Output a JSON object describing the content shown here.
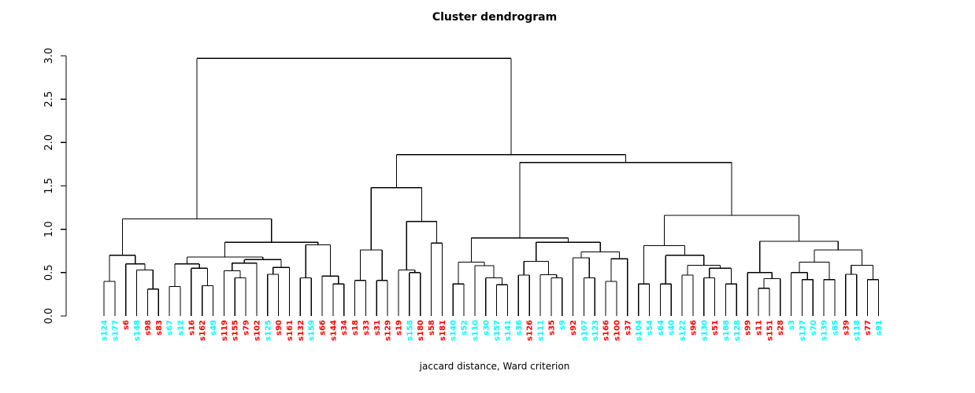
{
  "title": "Cluster dendrogram",
  "xlabel": "jaccard distance, Ward criterion",
  "colors": {
    "red": "#ff0000",
    "cyan": "#00ffff",
    "line": "#000000"
  },
  "axis": {
    "ticks": [
      0.0,
      0.5,
      1.0,
      1.5,
      2.0,
      2.5,
      3.0
    ],
    "labels": [
      "0.0",
      "0.5",
      "1.0",
      "1.5",
      "2.0",
      "2.5",
      "3.0"
    ]
  },
  "chart_data": {
    "type": "dendrogram",
    "title": "Cluster dendrogram",
    "xlabel": "jaccard distance, Ward criterion",
    "ylim": [
      0,
      3
    ],
    "grid": false,
    "leaf_order": [
      "s124",
      "s177",
      "s6",
      "s148",
      "s98",
      "s83",
      "s67",
      "s12",
      "s16",
      "s162",
      "s49",
      "s119",
      "s155",
      "s79",
      "s102",
      "s125",
      "s90",
      "s161",
      "s132",
      "s159",
      "s66",
      "s144",
      "s34",
      "s18",
      "s33",
      "s31",
      "s129",
      "s19",
      "s158",
      "s180",
      "s58",
      "s181",
      "s140",
      "s52",
      "s110",
      "s30",
      "s157",
      "s141",
      "s36",
      "s126",
      "s111",
      "s35",
      "s9",
      "s92",
      "s107",
      "s123",
      "s166",
      "s100",
      "s37",
      "s104",
      "s54",
      "s64",
      "s40",
      "s122",
      "s96",
      "s130",
      "s51",
      "s188",
      "s128",
      "s99",
      "s11",
      "s151",
      "s28",
      "s3",
      "s137",
      "s70",
      "s139",
      "s85",
      "s39",
      "s118",
      "s77",
      "s91"
    ],
    "leaf_colors": {
      "s124": "cyan",
      "s177": "cyan",
      "s6": "red",
      "s148": "cyan",
      "s98": "red",
      "s83": "red",
      "s67": "cyan",
      "s12": "cyan",
      "s16": "red",
      "s162": "red",
      "s49": "cyan",
      "s119": "red",
      "s155": "red",
      "s79": "red",
      "s102": "red",
      "s125": "cyan",
      "s90": "red",
      "s161": "red",
      "s132": "red",
      "s159": "cyan",
      "s66": "red",
      "s144": "red",
      "s34": "red",
      "s18": "red",
      "s33": "red",
      "s31": "red",
      "s129": "red",
      "s19": "red",
      "s158": "cyan",
      "s180": "red",
      "s58": "red",
      "s181": "red",
      "s140": "cyan",
      "s52": "cyan",
      "s110": "cyan",
      "s30": "cyan",
      "s157": "cyan",
      "s141": "cyan",
      "s36": "cyan",
      "s126": "red",
      "s111": "cyan",
      "s35": "red",
      "s9": "cyan",
      "s92": "red",
      "s107": "cyan",
      "s123": "cyan",
      "s166": "red",
      "s100": "red",
      "s37": "red",
      "s104": "cyan",
      "s54": "cyan",
      "s64": "cyan",
      "s40": "cyan",
      "s122": "cyan",
      "s96": "red",
      "s130": "cyan",
      "s51": "red",
      "s188": "cyan",
      "s128": "cyan",
      "s99": "red",
      "s11": "red",
      "s151": "red",
      "s28": "red",
      "s3": "cyan",
      "s137": "cyan",
      "s70": "cyan",
      "s139": "cyan",
      "s85": "cyan",
      "s39": "red",
      "s118": "cyan",
      "s77": "red",
      "s91": "cyan"
    },
    "tree": {
      "h": 2.97,
      "c": [
        {
          "h": 1.12,
          "c": [
            {
              "h": 0.7,
              "c": [
                {
                  "h": 0.4,
                  "c": [
                    "s124",
                    "s177"
                  ]
                },
                {
                  "h": 0.6,
                  "c": [
                    "s6",
                    {
                      "h": 0.53,
                      "c": [
                        "s148",
                        {
                          "h": 0.31,
                          "c": [
                            "s98",
                            "s83"
                          ]
                        }
                      ]
                    }
                  ]
                }
              ]
            },
            {
              "h": 0.85,
              "c": [
                {
                  "h": 0.68,
                  "c": [
                    {
                      "h": 0.6,
                      "c": [
                        {
                          "h": 0.34,
                          "c": [
                            "s67",
                            "s12"
                          ]
                        },
                        {
                          "h": 0.55,
                          "c": [
                            "s16",
                            {
                              "h": 0.35,
                              "c": [
                                "s162",
                                "s49"
                              ]
                            }
                          ]
                        }
                      ]
                    },
                    {
                      "h": 0.65,
                      "c": [
                        {
                          "h": 0.61,
                          "c": [
                            {
                              "h": 0.52,
                              "c": [
                                "s119",
                                {
                                  "h": 0.44,
                                  "c": [
                                    "s155",
                                    "s79"
                                  ]
                                }
                              ]
                            },
                            "s102"
                          ]
                        },
                        {
                          "h": 0.56,
                          "c": [
                            {
                              "h": 0.48,
                              "c": [
                                "s125",
                                "s90"
                              ]
                            },
                            "s161"
                          ]
                        }
                      ]
                    }
                  ]
                },
                {
                  "h": 0.82,
                  "c": [
                    {
                      "h": 0.44,
                      "c": [
                        "s132",
                        "s159"
                      ]
                    },
                    {
                      "h": 0.46,
                      "c": [
                        "s66",
                        {
                          "h": 0.37,
                          "c": [
                            "s144",
                            "s34"
                          ]
                        }
                      ]
                    }
                  ]
                }
              ]
            }
          ]
        },
        {
          "h": 1.86,
          "c": [
            {
              "h": 1.48,
              "c": [
                {
                  "h": 0.76,
                  "c": [
                    {
                      "h": 0.41,
                      "c": [
                        "s18",
                        "s33"
                      ]
                    },
                    {
                      "h": 0.41,
                      "c": [
                        "s31",
                        "s129"
                      ]
                    }
                  ]
                },
                {
                  "h": 1.09,
                  "c": [
                    {
                      "h": 0.53,
                      "c": [
                        "s19",
                        {
                          "h": 0.5,
                          "c": [
                            "s158",
                            "s180"
                          ]
                        }
                      ]
                    },
                    {
                      "h": 0.84,
                      "c": [
                        "s58",
                        "s181"
                      ]
                    }
                  ]
                }
              ]
            },
            {
              "h": 1.77,
              "c": [
                {
                  "h": 0.9,
                  "c": [
                    {
                      "h": 0.62,
                      "c": [
                        {
                          "h": 0.37,
                          "c": [
                            "s140",
                            "s52"
                          ]
                        },
                        {
                          "h": 0.58,
                          "c": [
                            "s110",
                            {
                              "h": 0.44,
                              "c": [
                                "s30",
                                {
                                  "h": 0.36,
                                  "c": [
                                    "s157",
                                    "s141"
                                  ]
                                }
                              ]
                            }
                          ]
                        }
                      ]
                    },
                    {
                      "h": 0.85,
                      "c": [
                        {
                          "h": 0.63,
                          "c": [
                            {
                              "h": 0.47,
                              "c": [
                                "s36",
                                "s126"
                              ]
                            },
                            {
                              "h": 0.475,
                              "c": [
                                "s111",
                                {
                                  "h": 0.44,
                                  "c": [
                                    "s35",
                                    "s9"
                                  ]
                                }
                              ]
                            }
                          ]
                        },
                        {
                          "h": 0.74,
                          "c": [
                            {
                              "h": 0.67,
                              "c": [
                                "s92",
                                {
                                  "h": 0.44,
                                  "c": [
                                    "s107",
                                    "s123"
                                  ]
                                }
                              ]
                            },
                            {
                              "h": 0.66,
                              "c": [
                                {
                                  "h": 0.4,
                                  "c": [
                                    "s166",
                                    "s100"
                                  ]
                                },
                                "s37"
                              ]
                            }
                          ]
                        }
                      ]
                    }
                  ]
                },
                {
                  "h": 1.16,
                  "c": [
                    {
                      "h": 0.81,
                      "c": [
                        {
                          "h": 0.37,
                          "c": [
                            "s104",
                            "s54"
                          ]
                        },
                        {
                          "h": 0.7,
                          "c": [
                            {
                              "h": 0.37,
                              "c": [
                                "s64",
                                "s40"
                              ]
                            },
                            {
                              "h": 0.585,
                              "c": [
                                {
                                  "h": 0.47,
                                  "c": [
                                    "s122",
                                    "s96"
                                  ]
                                },
                                {
                                  "h": 0.55,
                                  "c": [
                                    {
                                      "h": 0.44,
                                      "c": [
                                        "s130",
                                        "s51"
                                      ]
                                    },
                                    {
                                      "h": 0.37,
                                      "c": [
                                        "s188",
                                        "s128"
                                      ]
                                    }
                                  ]
                                }
                              ]
                            }
                          ]
                        }
                      ]
                    },
                    {
                      "h": 0.86,
                      "c": [
                        {
                          "h": 0.5,
                          "c": [
                            "s99",
                            {
                              "h": 0.43,
                              "c": [
                                {
                                  "h": 0.32,
                                  "c": [
                                    "s11",
                                    "s151"
                                  ]
                                },
                                "s28"
                              ]
                            }
                          ]
                        },
                        {
                          "h": 0.76,
                          "c": [
                            {
                              "h": 0.62,
                              "c": [
                                {
                                  "h": 0.5,
                                  "c": [
                                    "s3",
                                    {
                                      "h": 0.42,
                                      "c": [
                                        "s137",
                                        "s70"
                                      ]
                                    }
                                  ]
                                },
                                {
                                  "h": 0.42,
                                  "c": [
                                    "s139",
                                    "s85"
                                  ]
                                }
                              ]
                            },
                            {
                              "h": 0.585,
                              "c": [
                                {
                                  "h": 0.48,
                                  "c": [
                                    "s39",
                                    "s118"
                                  ]
                                },
                                {
                                  "h": 0.42,
                                  "c": [
                                    "s77",
                                    "s91"
                                  ]
                                }
                              ]
                            }
                          ]
                        }
                      ]
                    }
                  ]
                }
              ]
            }
          ]
        }
      ]
    }
  }
}
